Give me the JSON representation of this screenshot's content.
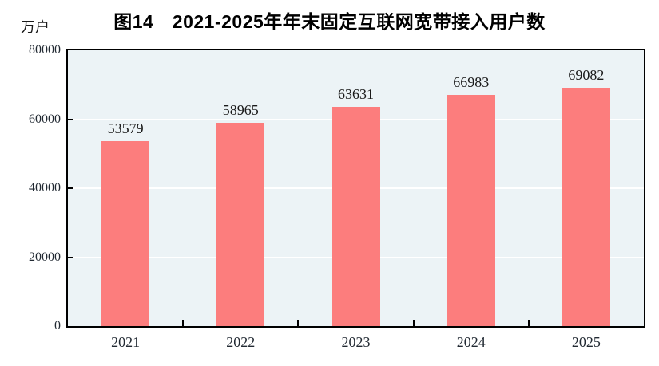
{
  "figure": {
    "title": "图14　2021-2025年年末固定互联网宽带接入用户数",
    "unit_label": "万户"
  },
  "chart_data": {
    "type": "bar",
    "title": "图14　2021-2025年年末固定互联网宽带接入用户数",
    "ylabel_unit": "万户",
    "xlabel": "",
    "categories": [
      "2021",
      "2022",
      "2023",
      "2024",
      "2025"
    ],
    "values": [
      53579,
      58965,
      63631,
      66983,
      69082
    ],
    "value_labels": [
      "53579",
      "58965",
      "63631",
      "66983",
      "69082"
    ],
    "ylim": [
      0,
      80000
    ],
    "yticks": [
      0,
      20000,
      40000,
      60000,
      80000
    ],
    "ytick_labels": [
      "0",
      "20000",
      "40000",
      "60000",
      "80000"
    ],
    "grid": "horizontal-white-gridlines",
    "legend": "none",
    "colors": {
      "bar": "#fc7d7d",
      "plot_background": "#ecf3f6",
      "gridline": "#ffffff",
      "axis_frame": "#000000",
      "text": "#1a1a1a"
    }
  }
}
